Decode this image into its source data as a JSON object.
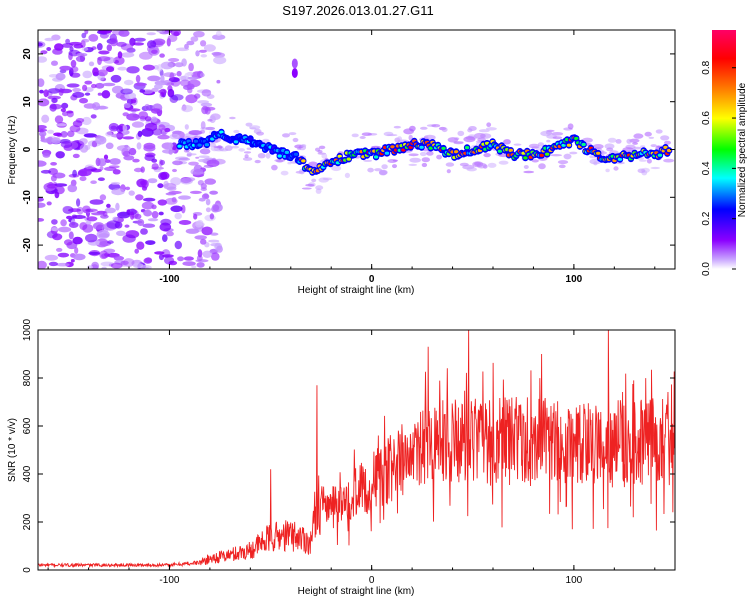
{
  "title": "S197.2026.013.01.27.G11",
  "chart_data": [
    {
      "type": "heatmap",
      "name": "spectrogram",
      "xlabel": "Height of straight line (km)",
      "ylabel": "Frequency (Hz)",
      "xlim": [
        -165,
        150
      ],
      "ylim": [
        -25,
        25
      ],
      "xticks": [
        -100,
        0,
        100
      ],
      "yticks": [
        -20,
        -10,
        0,
        10,
        20
      ],
      "colorbar": {
        "label": "Normalized spectral amplitude",
        "range": [
          0,
          0.95
        ],
        "ticks": [
          "0.0",
          "0.2",
          "0.4",
          "0.6",
          "0.8"
        ],
        "colors": [
          "#ffffff",
          "#8b00ff",
          "#0000ff",
          "#00ffff",
          "#00ff00",
          "#ffff00",
          "#ff8000",
          "#ff0000",
          "#ff0066"
        ]
      },
      "ridge": {
        "x": [
          -95,
          -85,
          -75,
          -65,
          -55,
          -45,
          -40,
          -35,
          -30,
          -20,
          -10,
          0,
          10,
          20,
          30,
          40,
          50,
          60,
          70,
          80,
          90,
          100,
          110,
          120,
          130,
          140,
          148
        ],
        "y": [
          1,
          1,
          3,
          2,
          1,
          -1,
          -1,
          -2,
          -5,
          -3,
          -1,
          -1,
          0,
          1,
          1,
          -1,
          0,
          1,
          -1,
          -1,
          0,
          2,
          -1,
          -2,
          -1,
          -1,
          0
        ]
      }
    },
    {
      "type": "line",
      "name": "snr",
      "xlabel": "Height of straight line (km)",
      "ylabel": "SNR (10 * v/v)",
      "xlim": [
        -165,
        150
      ],
      "ylim": [
        0,
        1000
      ],
      "xticks": [
        -100,
        0,
        100
      ],
      "yticks": [
        0,
        200,
        400,
        600,
        800,
        1000
      ],
      "color": "#ee2222",
      "envelope": {
        "x": [
          -165,
          -130,
          -100,
          -85,
          -80,
          -70,
          -60,
          -50,
          -40,
          -35,
          -30,
          -27,
          -25,
          -22,
          -20,
          -10,
          0,
          10,
          20,
          30,
          50,
          70,
          100,
          120,
          150
        ],
        "y": [
          20,
          20,
          20,
          30,
          45,
          60,
          80,
          130,
          140,
          130,
          110,
          280,
          260,
          240,
          250,
          300,
          350,
          420,
          460,
          500,
          520,
          520,
          510,
          510,
          520
        ]
      },
      "spikes": [
        {
          "x": -27,
          "y": 770
        },
        {
          "x": 48,
          "y": 1000
        },
        {
          "x": 117,
          "y": 1010
        },
        {
          "x": 28,
          "y": 930
        },
        {
          "x": 84,
          "y": 900
        },
        {
          "x": -50,
          "y": 420
        }
      ]
    }
  ]
}
